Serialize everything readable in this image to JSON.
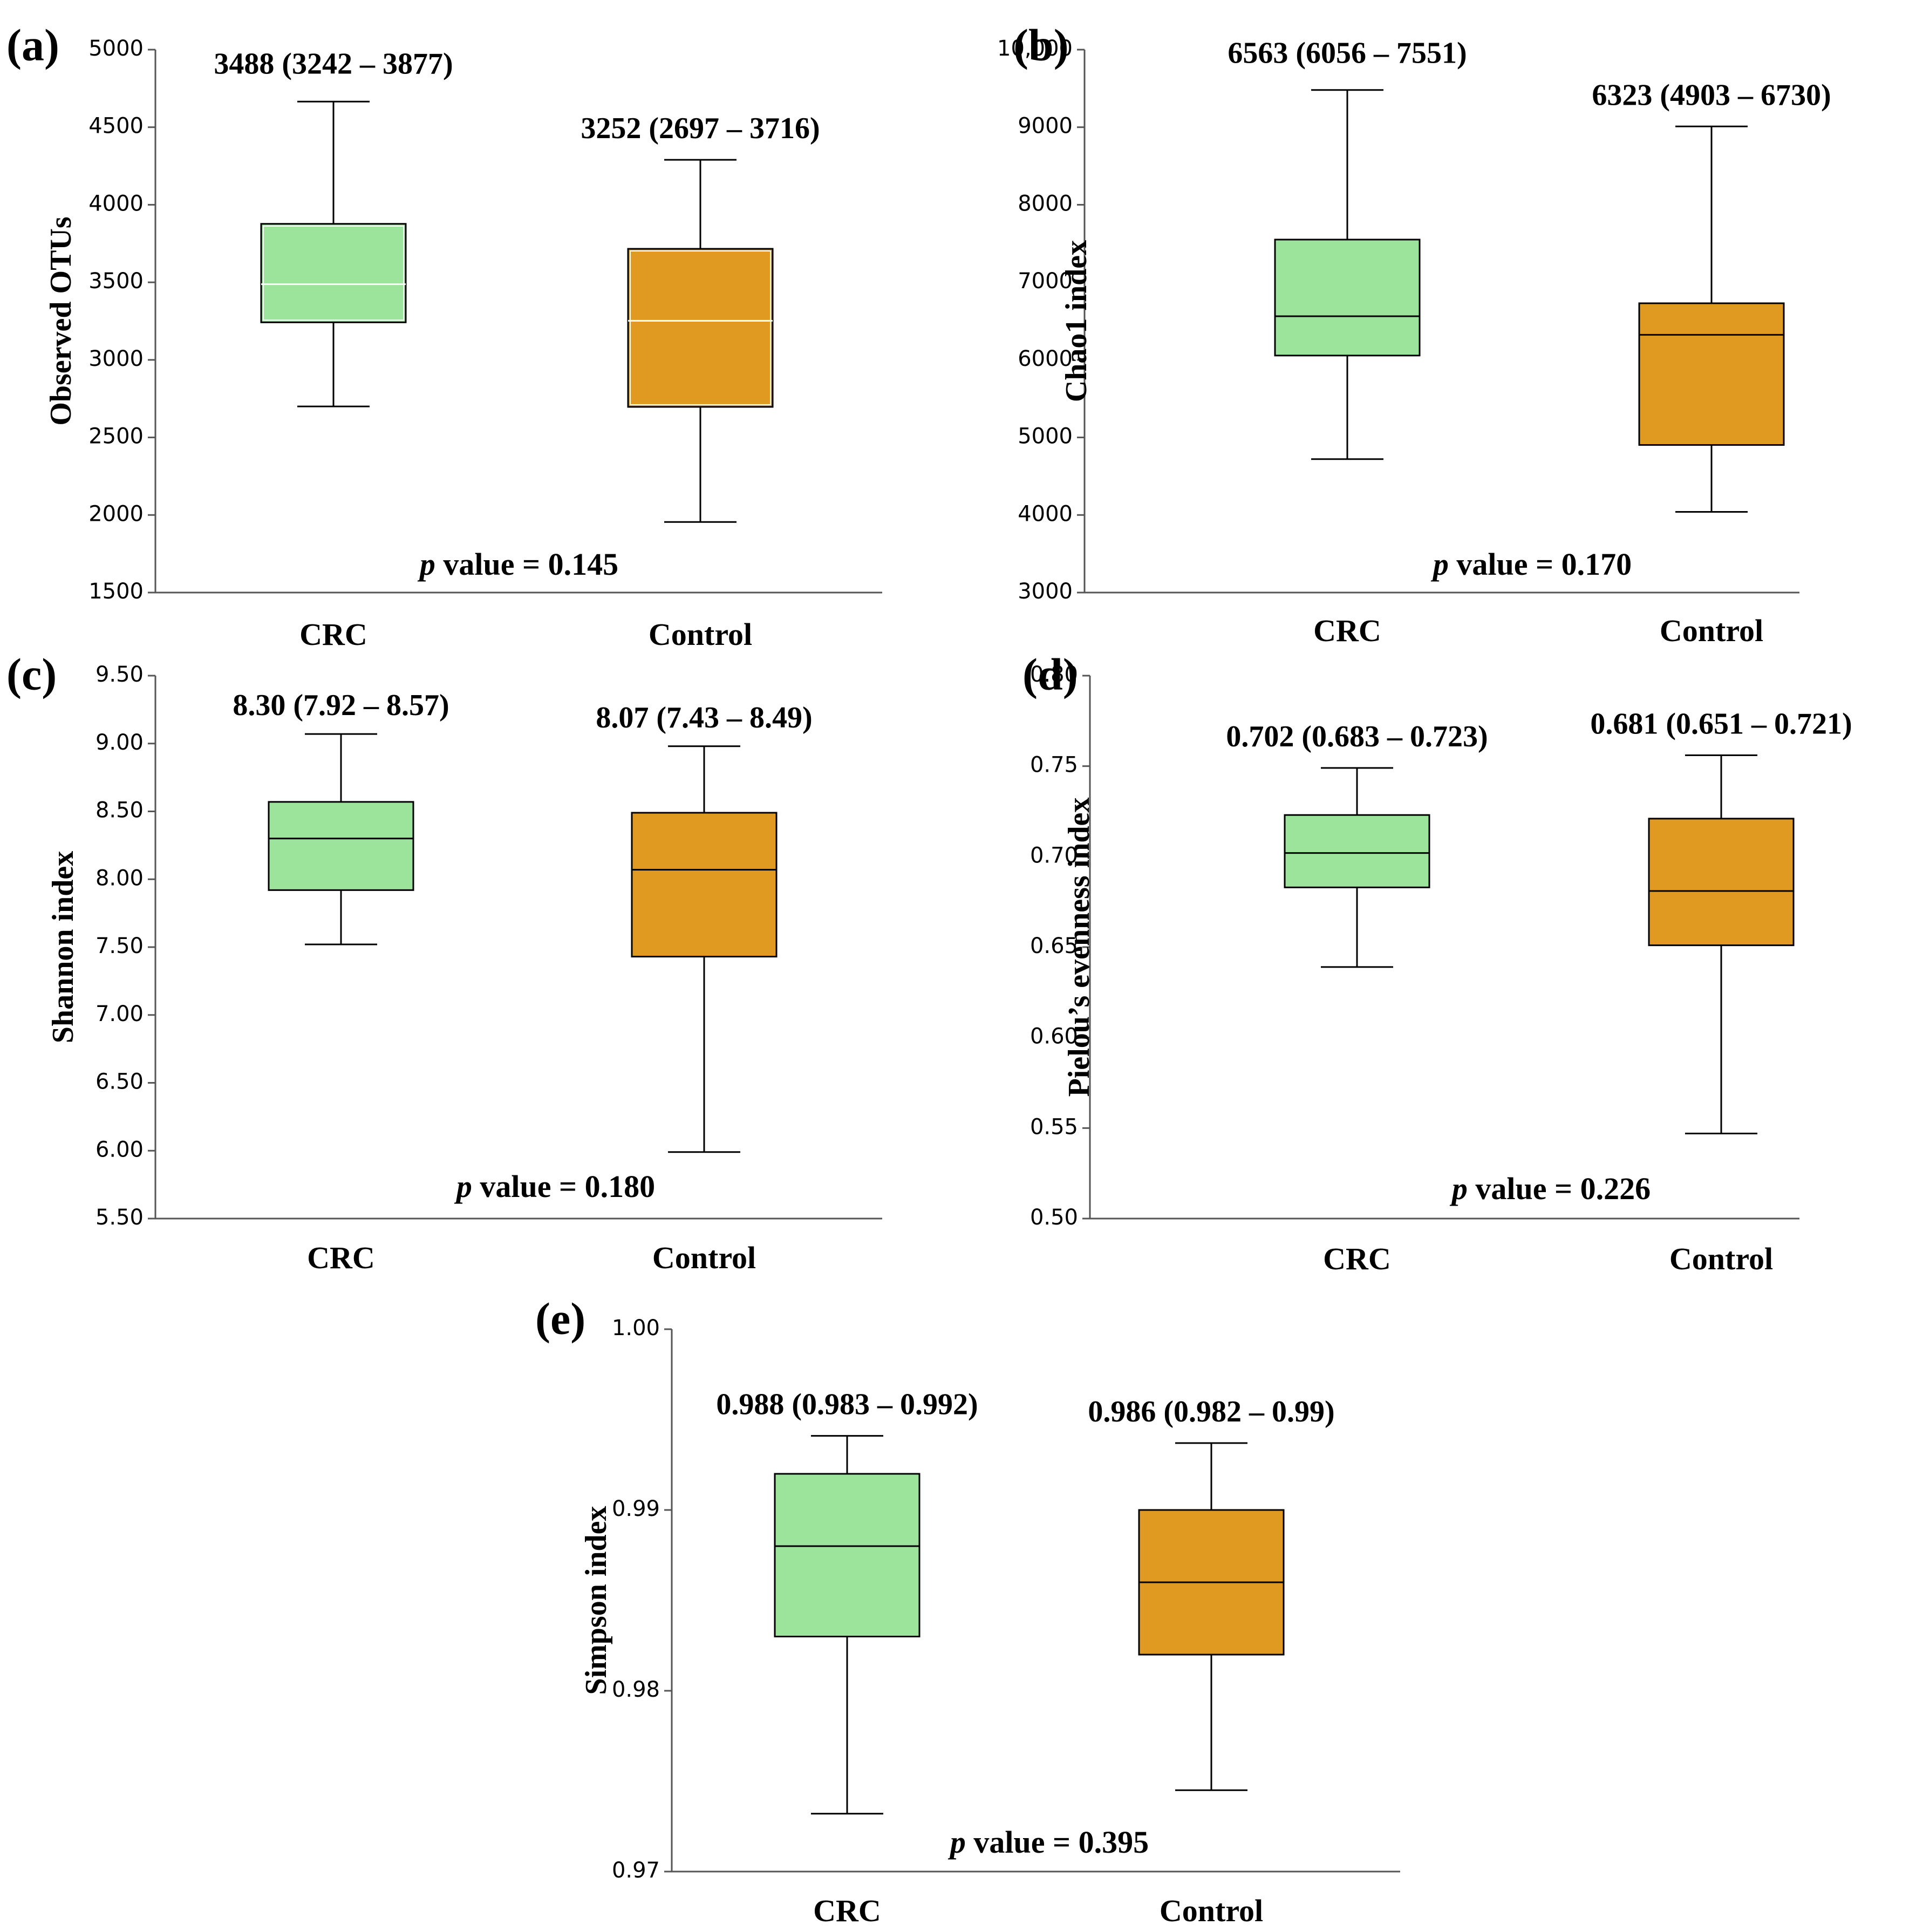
{
  "colors": {
    "crc": "#9ce39b",
    "control": "#e09a22",
    "axis": "#555555",
    "line": "#000000"
  },
  "chart_data": [
    {
      "type": "box",
      "panel": "(a)",
      "ylabel": "Observed OTUs",
      "categories": [
        "CRC",
        "Control"
      ],
      "ylim": [
        1500,
        5000
      ],
      "ticks": [
        "1500",
        "2000",
        "2500",
        "3000",
        "3500",
        "4000",
        "4500",
        "5000"
      ],
      "tick_values": [
        1500,
        2000,
        2500,
        3000,
        3500,
        4000,
        4500,
        5000
      ],
      "boxes": [
        {
          "name": "CRC",
          "whislo": 2700,
          "q1": 3242,
          "med": 3488,
          "q3": 3877,
          "whishi": 4665,
          "label": "3488 (3242 – 3877)"
        },
        {
          "name": "Control",
          "whislo": 1955,
          "q1": 2697,
          "med": 3252,
          "q3": 3716,
          "whishi": 4290,
          "label": "3252 (2697 – 3716)"
        }
      ],
      "median_color": "#ffffff",
      "pvalue_prefix": "p",
      "pvalue_text": " value = 0.145"
    },
    {
      "type": "box",
      "panel": "(b)",
      "ylabel": "Chao1 index",
      "categories": [
        "CRC",
        "Control"
      ],
      "ylim": [
        3000,
        10000
      ],
      "ticks": [
        "3000",
        "4000",
        "5000",
        "6000",
        "7000",
        "8000",
        "9000",
        "10,000"
      ],
      "tick_values": [
        3000,
        4000,
        5000,
        6000,
        7000,
        8000,
        9000,
        10000
      ],
      "boxes": [
        {
          "name": "CRC",
          "whislo": 4720,
          "q1": 6056,
          "med": 6563,
          "q3": 7551,
          "whishi": 9480,
          "label": "6563 (6056 – 7551)"
        },
        {
          "name": "Control",
          "whislo": 4040,
          "q1": 4903,
          "med": 6323,
          "q3": 6730,
          "whishi": 9010,
          "label": "6323 (4903 – 6730)"
        }
      ],
      "median_color": "#000000",
      "pvalue_prefix": "p",
      "pvalue_text": " value = 0.170"
    },
    {
      "type": "box",
      "panel": "(c)",
      "ylabel": "Shannon index",
      "categories": [
        "CRC",
        "Control"
      ],
      "ylim": [
        5.5,
        9.5
      ],
      "ticks": [
        "5.50",
        "6.00",
        "6.50",
        "7.00",
        "7.50",
        "8.00",
        "8.50",
        "9.00",
        "9.50"
      ],
      "tick_values": [
        5.5,
        6.0,
        6.5,
        7.0,
        7.5,
        8.0,
        8.5,
        9.0,
        9.5
      ],
      "boxes": [
        {
          "name": "CRC",
          "whislo": 7.52,
          "q1": 7.92,
          "med": 8.3,
          "q3": 8.57,
          "whishi": 9.07,
          "label": "8.30 (7.92 – 8.57)"
        },
        {
          "name": "Control",
          "whislo": 5.99,
          "q1": 7.43,
          "med": 8.07,
          "q3": 8.49,
          "whishi": 8.98,
          "label": "8.07 (7.43 – 8.49)"
        }
      ],
      "median_color": "#000000",
      "pvalue_prefix": "p",
      "pvalue_text": " value = 0.180"
    },
    {
      "type": "box",
      "panel": "(d)",
      "ylabel": "Pielou’s evenness index",
      "categories": [
        "CRC",
        "Control"
      ],
      "ylim": [
        0.5,
        0.8
      ],
      "ticks": [
        "0.50",
        "0.55",
        "0.60",
        "0.65",
        "0.70",
        "0.75",
        "0.80"
      ],
      "tick_values": [
        0.5,
        0.55,
        0.6,
        0.65,
        0.7,
        0.75,
        0.8
      ],
      "boxes": [
        {
          "name": "CRC",
          "whislo": 0.639,
          "q1": 0.683,
          "med": 0.702,
          "q3": 0.723,
          "whishi": 0.749,
          "label": "0.702 (0.683 – 0.723)"
        },
        {
          "name": "Control",
          "whislo": 0.547,
          "q1": 0.651,
          "med": 0.681,
          "q3": 0.721,
          "whishi": 0.756,
          "label": "0.681 (0.651 – 0.721)"
        }
      ],
      "median_color": "#000000",
      "pvalue_prefix": "p",
      "pvalue_text": " value = 0.226"
    },
    {
      "type": "box",
      "panel": "(e)",
      "ylabel": "Simpson index",
      "categories": [
        "CRC",
        "Control"
      ],
      "ylim": [
        0.97,
        1.0
      ],
      "ticks": [
        "0.97",
        "0.98",
        "0.99",
        "1.00"
      ],
      "tick_values": [
        0.97,
        0.98,
        0.99,
        1.0
      ],
      "boxes": [
        {
          "name": "CRC",
          "whislo": 0.9732,
          "q1": 0.983,
          "med": 0.988,
          "q3": 0.992,
          "whishi": 0.9941,
          "label": "0.988 (0.983 – 0.992)"
        },
        {
          "name": "Control",
          "whislo": 0.9745,
          "q1": 0.982,
          "med": 0.986,
          "q3": 0.99,
          "whishi": 0.9937,
          "label": "0.986 (0.982 – 0.99)"
        }
      ],
      "median_color": "#000000",
      "pvalue_prefix": "p",
      "pvalue_text": " value = 0.395"
    }
  ]
}
